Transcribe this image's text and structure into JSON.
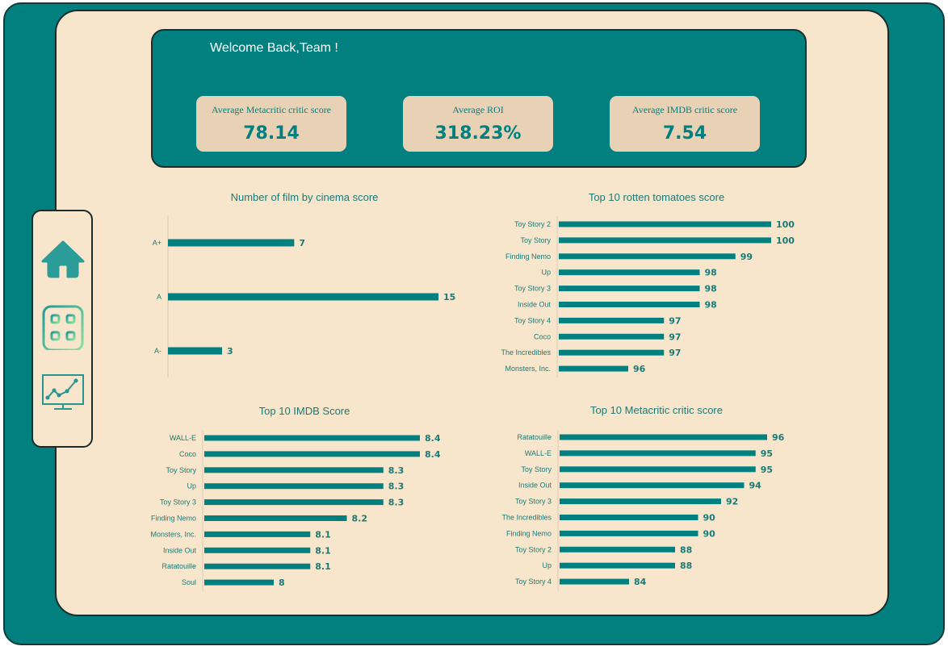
{
  "header": {
    "welcome": "Welcome Back,Team !",
    "kpis": [
      {
        "label": "Average Metacritic critic score",
        "value": "78.14"
      },
      {
        "label": "Average ROI",
        "value": "318.23%"
      },
      {
        "label": "Average IMDB critic score",
        "value": "7.54"
      }
    ]
  },
  "sidebar": {
    "items": [
      {
        "name": "home",
        "icon": "home-icon"
      },
      {
        "name": "dashboard",
        "icon": "grid-icon"
      },
      {
        "name": "analytics",
        "icon": "line-chart-monitor-icon"
      }
    ]
  },
  "colors": {
    "accent": "#01807f",
    "panel": "#f7e6cb",
    "kpi_card": "#e8d1b5"
  },
  "chart_data": [
    {
      "id": "cinema",
      "type": "bar",
      "orientation": "horizontal",
      "title": "Number of film by cinema score",
      "categories": [
        "A+",
        "A",
        "A-"
      ],
      "values": [
        7,
        15,
        3
      ],
      "xlim": [
        0,
        15
      ]
    },
    {
      "id": "rotten",
      "type": "bar",
      "orientation": "horizontal",
      "title": "Top 10 rotten tomatoes score",
      "categories": [
        "Toy Story 2",
        "Toy Story",
        "Finding Nemo",
        "Up",
        "Toy Story 3",
        "Inside Out",
        "Toy Story 4",
        "Coco",
        "The Incredibles",
        "Monsters, Inc."
      ],
      "values": [
        100,
        100,
        99,
        98,
        98,
        98,
        97,
        97,
        97,
        96
      ],
      "xlim": [
        94,
        100
      ]
    },
    {
      "id": "imdb",
      "type": "bar",
      "orientation": "horizontal",
      "title": "Top 10 IMDB Score",
      "categories": [
        "WALL-E",
        "Coco",
        "Toy Story",
        "Up",
        "Toy Story 3",
        "Finding Nemo",
        "Monsters, Inc.",
        "Inside Out",
        "Ratatouille",
        "Soul"
      ],
      "values": [
        8.4,
        8.4,
        8.3,
        8.3,
        8.3,
        8.2,
        8.1,
        8.1,
        8.1,
        8
      ],
      "xlim": [
        7.8,
        8.4
      ]
    },
    {
      "id": "metacritic",
      "type": "bar",
      "orientation": "horizontal",
      "title": "Top 10 Metacritic critic score",
      "categories": [
        "Ratatouille",
        "WALL-E",
        "Toy Story",
        "Inside Out",
        "Toy Story 3",
        "The Incredibles",
        "Finding Nemo",
        "Toy Story 2",
        "Up",
        "Toy Story 4"
      ],
      "values": [
        96,
        95,
        95,
        94,
        92,
        90,
        90,
        88,
        88,
        84
      ],
      "xlim": [
        78,
        96
      ]
    }
  ]
}
